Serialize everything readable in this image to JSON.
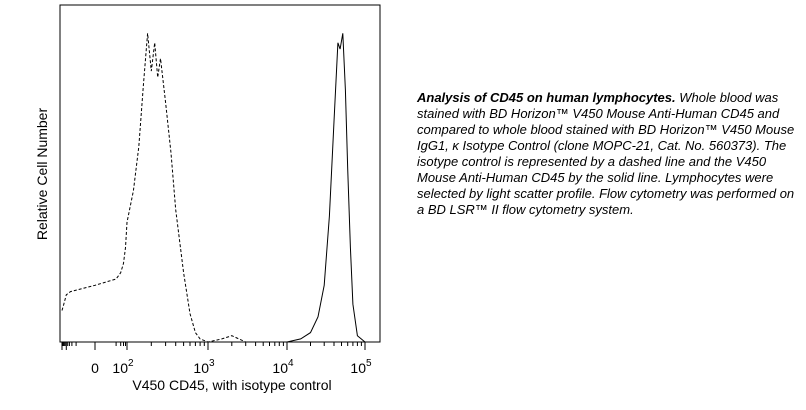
{
  "chart_data": {
    "type": "line",
    "title": "",
    "xlabel": "V450 CD45, with isotype control",
    "ylabel": "Relative Cell Number",
    "x_scale": "biexponential",
    "xlim": [
      -200,
      120000
    ],
    "ylim": [
      0,
      1
    ],
    "x_tick_labels": [
      {
        "value": 0,
        "label": "0"
      },
      {
        "value": 100,
        "label": "10",
        "exp": "2"
      },
      {
        "value": 1000,
        "label": "10",
        "exp": "3"
      },
      {
        "value": 10000,
        "label": "10",
        "exp": "4"
      },
      {
        "value": 100000,
        "label": "10",
        "exp": "5"
      }
    ],
    "series": [
      {
        "style": "dashed",
        "x": [
          -200,
          -150,
          -100,
          -50,
          0,
          20,
          40,
          60,
          80,
          100,
          120,
          140,
          160,
          180,
          200,
          220,
          240,
          260,
          300,
          350,
          400,
          500,
          600,
          700,
          800,
          1000,
          1500,
          2000,
          3000,
          5000,
          10000,
          100000
        ],
        "y": [
          0.1,
          0.12,
          0.15,
          0.16,
          0.18,
          0.2,
          0.22,
          0.25,
          0.3,
          0.38,
          0.48,
          0.62,
          0.82,
          0.98,
          0.86,
          0.95,
          0.84,
          0.9,
          0.76,
          0.6,
          0.42,
          0.22,
          0.09,
          0.03,
          0.01,
          0.0,
          0.01,
          0.02,
          0.0,
          0.0,
          0.0,
          0.0
        ]
      },
      {
        "style": "solid",
        "x": [
          -200,
          10000,
          15000,
          20000,
          25000,
          30000,
          35000,
          40000,
          45000,
          48000,
          52000,
          56000,
          60000,
          65000,
          70000,
          80000,
          100000
        ],
        "y": [
          0.0,
          0.0,
          0.01,
          0.03,
          0.08,
          0.18,
          0.4,
          0.7,
          0.95,
          0.93,
          0.98,
          0.8,
          0.55,
          0.3,
          0.12,
          0.02,
          0.0
        ]
      }
    ]
  },
  "caption": {
    "bold": "Analysis of CD45 on human lymphocytes.",
    "text": " Whole blood was stained with BD Horizon™ V450 Mouse Anti-Human CD45 and compared to whole blood stained with BD Horizon™ V450 Mouse IgG1, κ Isotype Control (clone MOPC-21, Cat. No. 560373). The isotype control is represented by a dashed line and the V450 Mouse Anti-Human CD45 by the solid line. Lymphocytes were selected by light scatter profile. Flow cytometry was performed on a BD LSR™ II flow cytometry system."
  }
}
